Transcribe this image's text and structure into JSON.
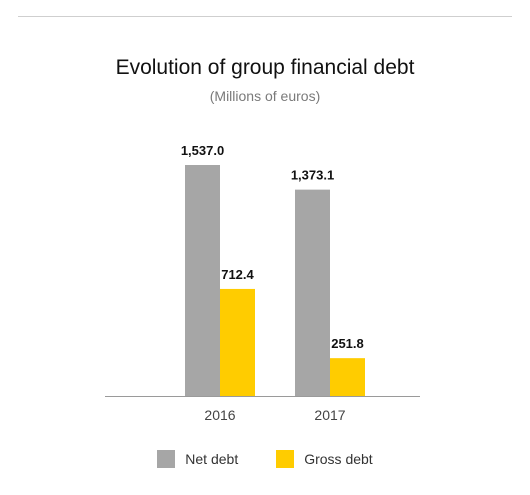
{
  "chart_data": {
    "type": "bar",
    "title": "Evolution of group financial debt",
    "subtitle": "(Millions of euros)",
    "categories": [
      "2016",
      "2017"
    ],
    "series": [
      {
        "name": "Net debt",
        "values": [
          1537.0,
          1373.1
        ],
        "labels": [
          "1,537.0",
          "1,373.1"
        ],
        "color": "#a6a6a6"
      },
      {
        "name": "Gross debt",
        "values": [
          712.4,
          251.8
        ],
        "labels": [
          "712.4",
          "251.8"
        ],
        "color": "#ffcc00"
      }
    ],
    "ylim": [
      0,
      1600
    ],
    "grid": false,
    "legend_position": "bottom-center"
  }
}
